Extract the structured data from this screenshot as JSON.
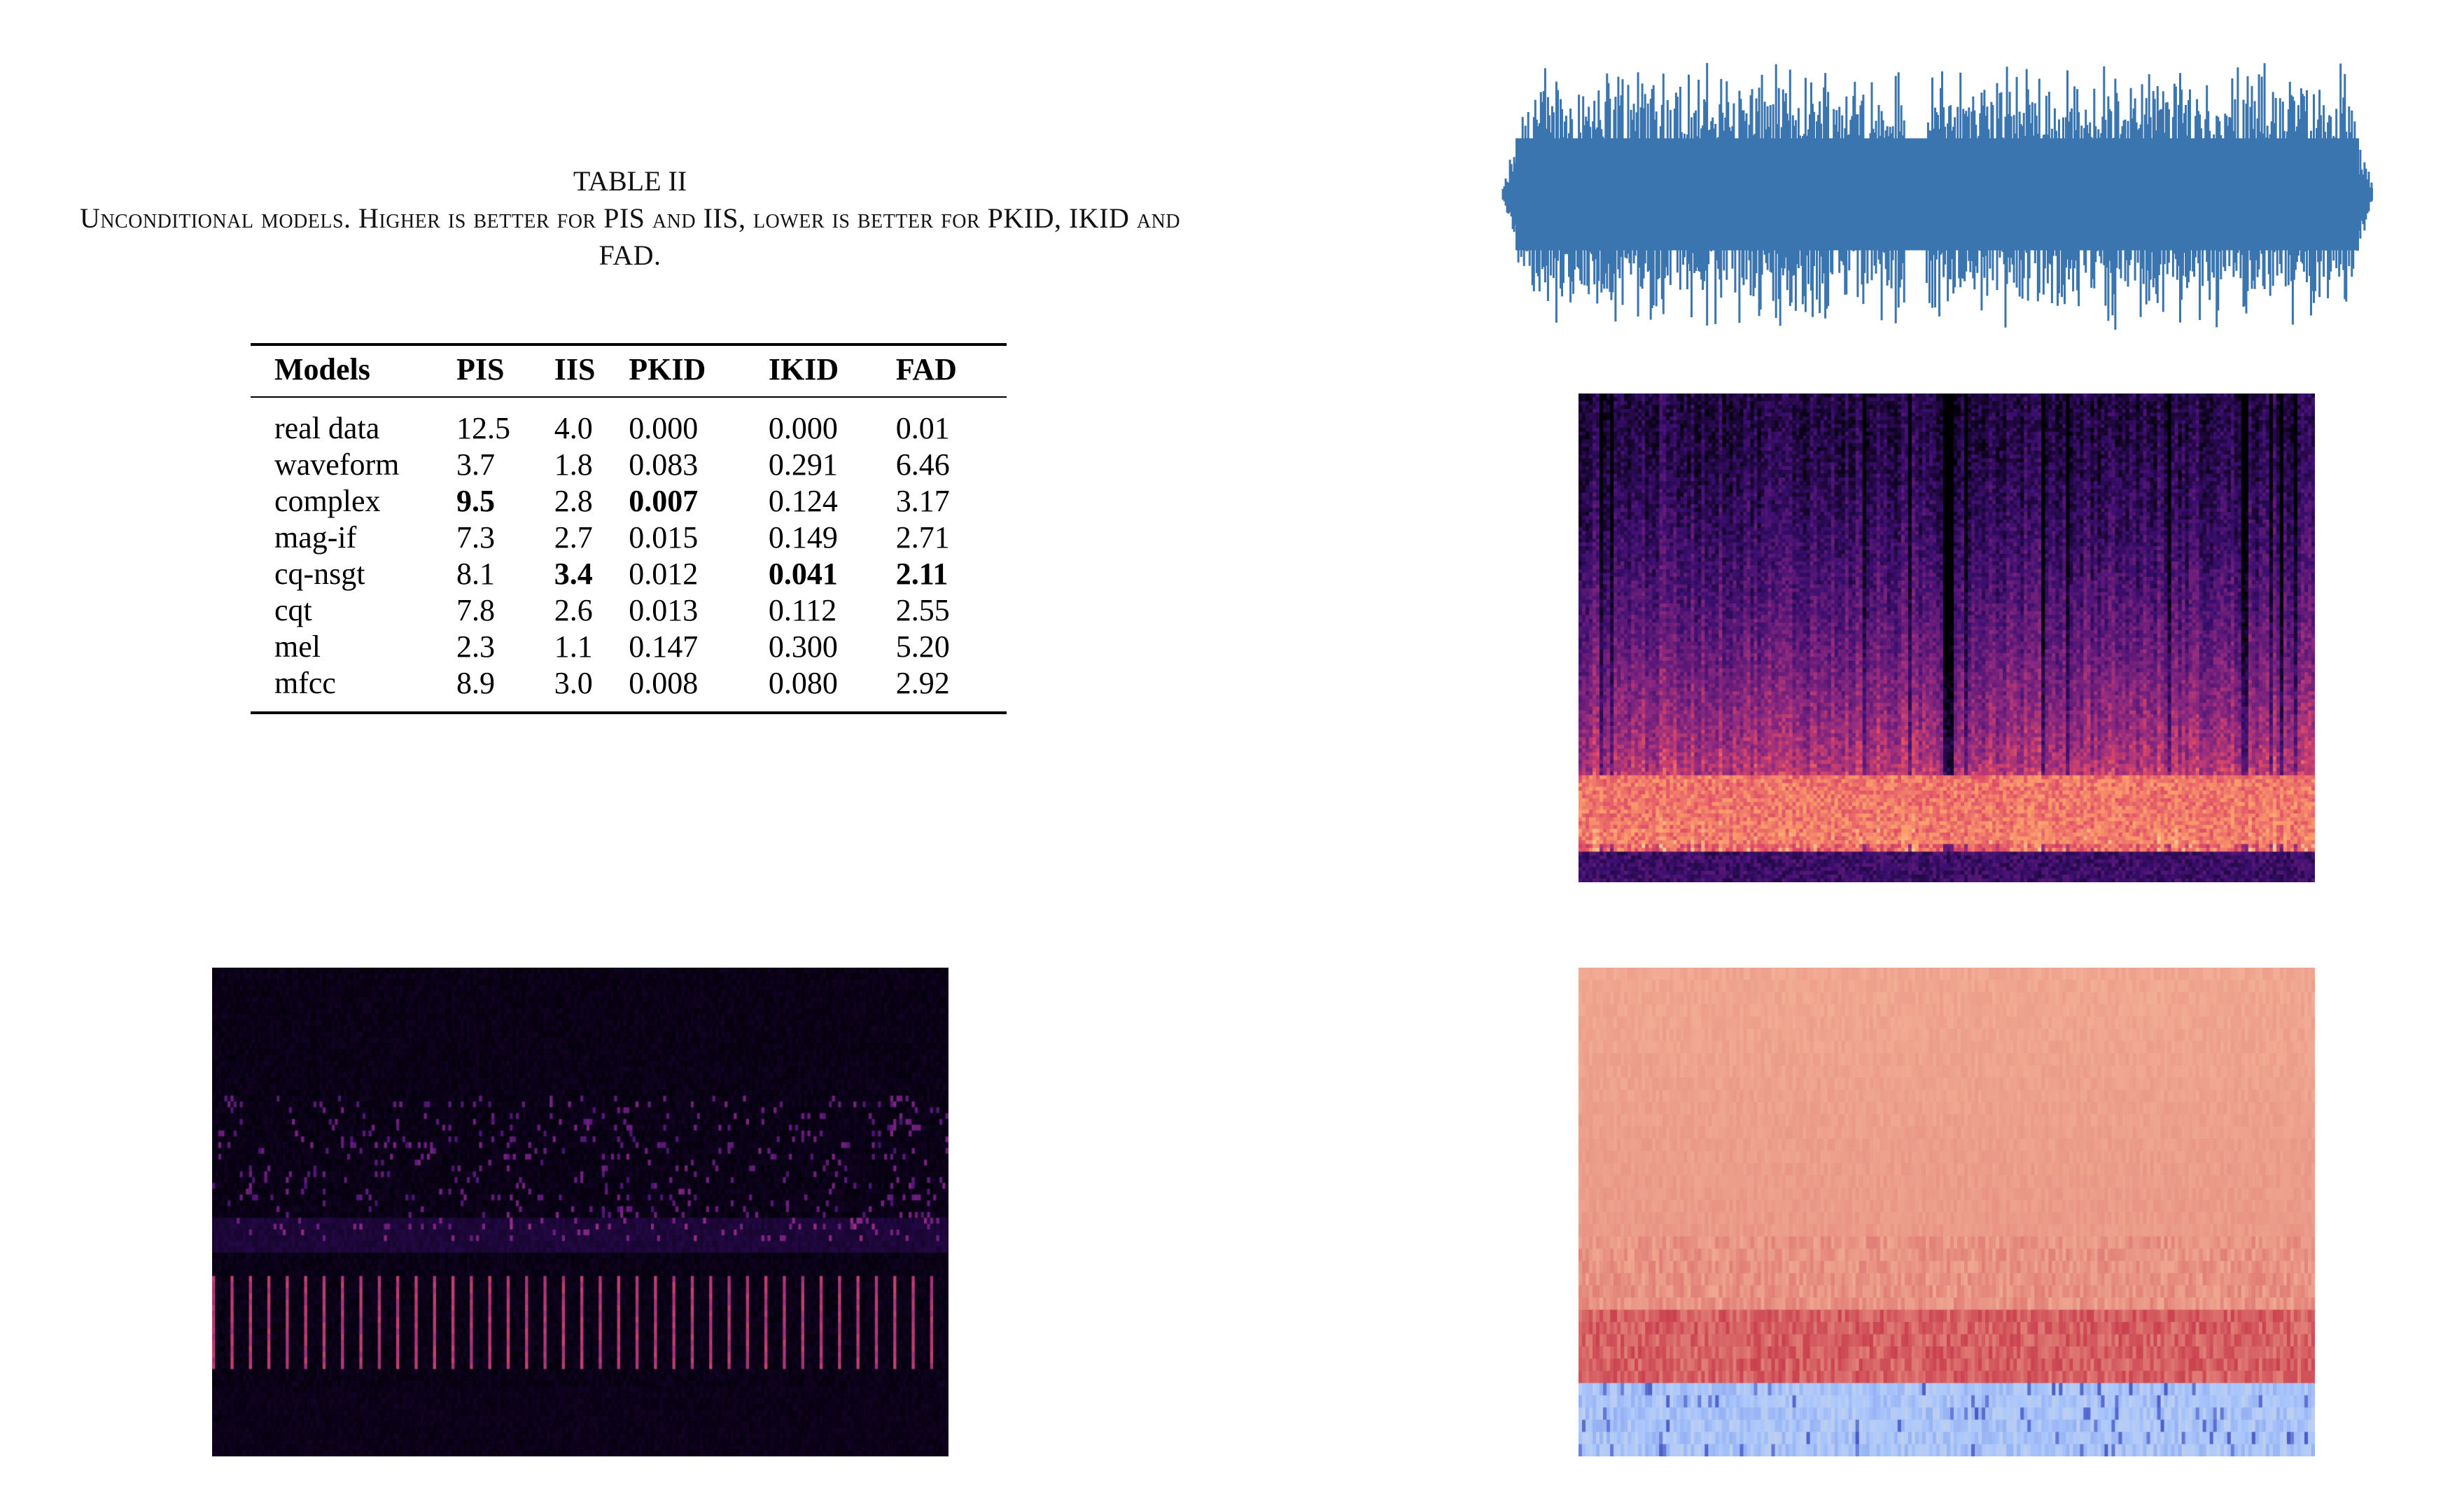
{
  "caption": {
    "label": "TABLE II",
    "text": "Unconditional models. Higher is better for PIS and IIS, lower is better for PKID, IKID and FAD."
  },
  "table": {
    "headers": [
      "Models",
      "PIS",
      "IIS",
      "PKID",
      "IKID",
      "FAD"
    ],
    "rows": [
      {
        "cells": [
          "real data",
          "12.5",
          "4.0",
          "0.000",
          "0.000",
          "0.01"
        ],
        "bold": []
      },
      {
        "cells": [
          "waveform",
          "3.7",
          "1.8",
          "0.083",
          "0.291",
          "6.46"
        ],
        "bold": []
      },
      {
        "cells": [
          "complex",
          "9.5",
          "2.8",
          "0.007",
          "0.124",
          "3.17"
        ],
        "bold": [
          1,
          3
        ]
      },
      {
        "cells": [
          "mag-if",
          "7.3",
          "2.7",
          "0.015",
          "0.149",
          "2.71"
        ],
        "bold": []
      },
      {
        "cells": [
          "cq-nsgt",
          "8.1",
          "3.4",
          "0.012",
          "0.041",
          "2.11"
        ],
        "bold": [
          2,
          4,
          5
        ]
      },
      {
        "cells": [
          "cqt",
          "7.8",
          "2.6",
          "0.013",
          "0.112",
          "2.55"
        ],
        "bold": []
      },
      {
        "cells": [
          "mel",
          "2.3",
          "1.1",
          "0.147",
          "0.300",
          "5.20"
        ],
        "bold": []
      },
      {
        "cells": [
          "mfcc",
          "8.9",
          "3.0",
          "0.008",
          "0.080",
          "2.92"
        ],
        "bold": []
      }
    ]
  },
  "figures": {
    "waveform": {
      "color": "#3b75af",
      "segments": 2
    },
    "spectrogram": {
      "colormap": "magma",
      "dark": "#1b0c3f",
      "mid": "#b73779",
      "light": "#fcd7a0"
    },
    "cqt": {
      "colormap": "magma",
      "background": "#05021a",
      "accent": "#c44b9a"
    },
    "mfcc": {
      "colormap": "coolwarm",
      "pale": "#edb59a",
      "deep": "#b7412e",
      "blue": "#5a7ee6"
    }
  }
}
